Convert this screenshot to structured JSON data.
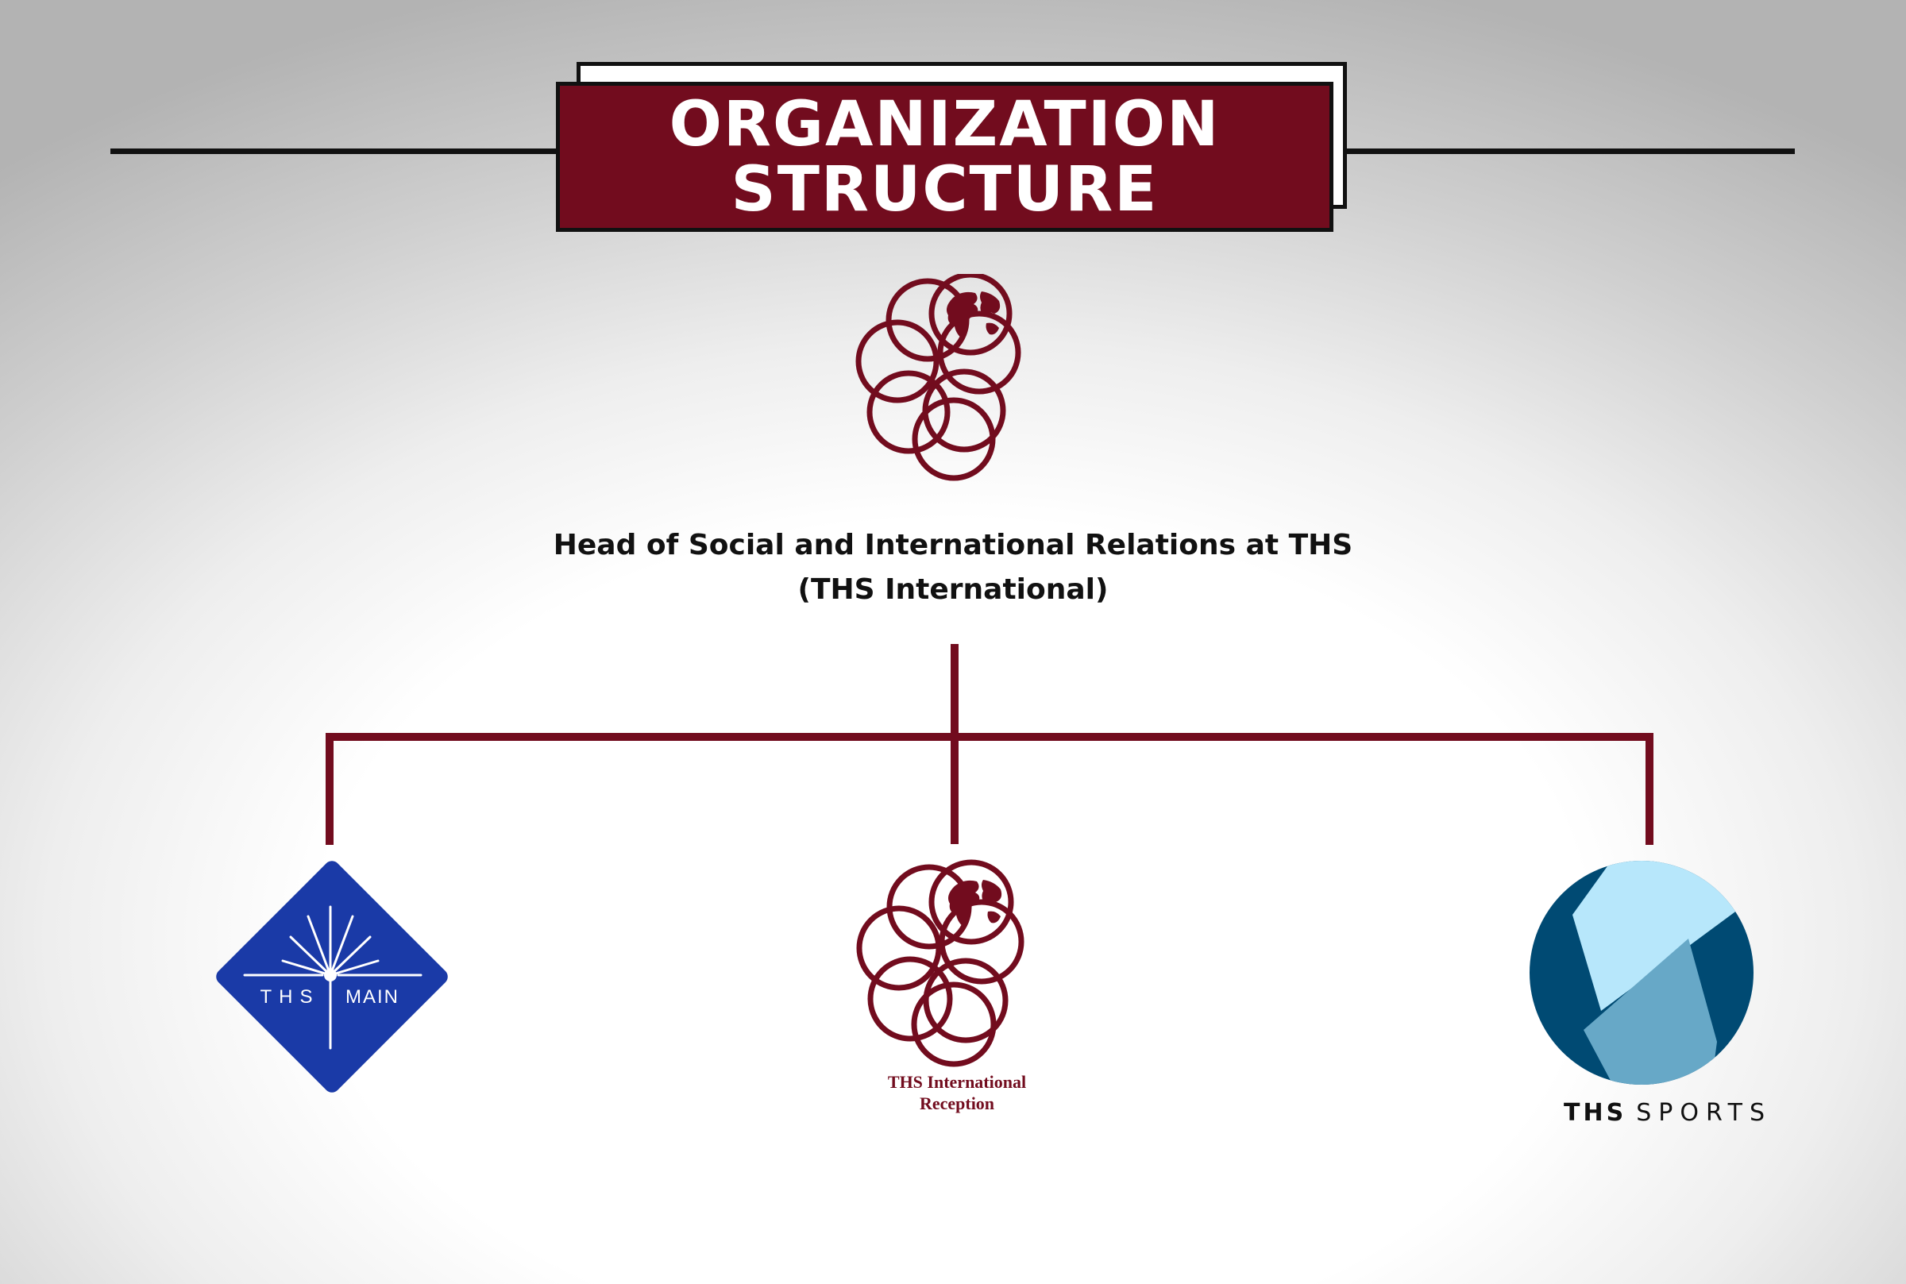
{
  "title": {
    "line1": "ORGANIZATION",
    "line2": "STRUCTURE"
  },
  "head": {
    "line1": "Head of Social and International Relations at THS",
    "line2": "(THS International)"
  },
  "units": [
    {
      "id": "ths-main",
      "logo_text_left": "THS",
      "logo_text_right": "MAIN",
      "color": "#1a3aa7"
    },
    {
      "id": "ths-international-reception",
      "label_line1": "THS International",
      "label_line2": "Reception",
      "color": "#720c1e"
    },
    {
      "id": "ths-sports",
      "label_prefix": "THS",
      "label_suffix": "SPORTS",
      "colors": {
        "dark": "#004a73",
        "light": "#b7e7fb",
        "mid": "#67a8c7"
      }
    }
  ],
  "colors": {
    "brand": "#720c1e",
    "line": "#111111"
  },
  "icons": {
    "org": "rings-globe-icon",
    "main": "ths-main-logo-icon",
    "sports": "ths-sports-logo-icon"
  }
}
